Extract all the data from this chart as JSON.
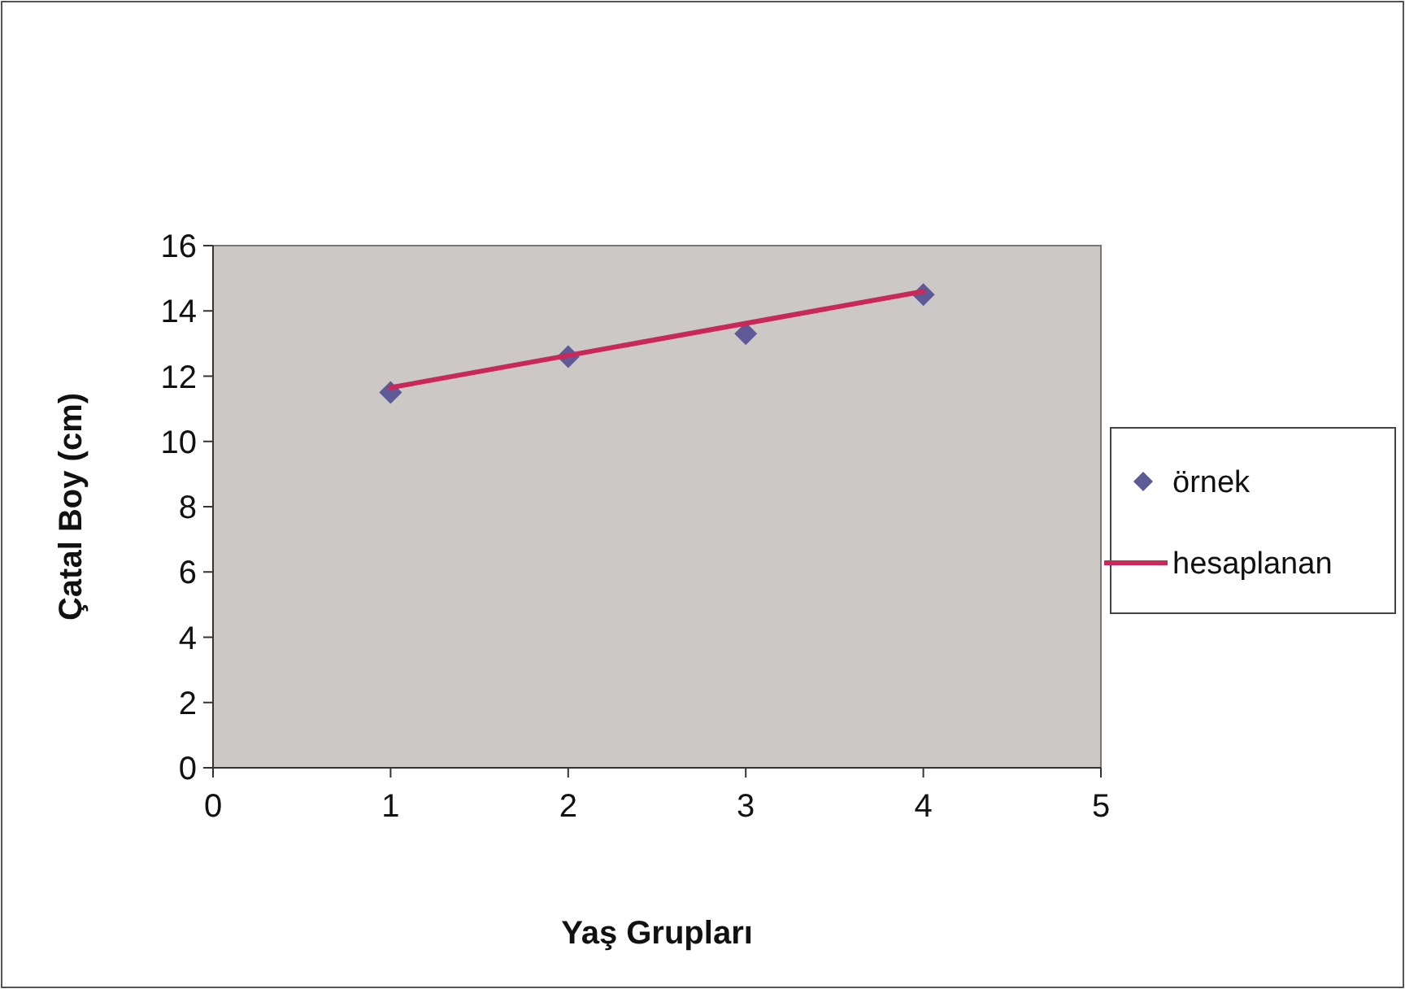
{
  "chart_data": {
    "type": "scatter",
    "xlabel": "Yaş Grupları",
    "ylabel": "Çatal Boy (cm)",
    "xlim": [
      0,
      5
    ],
    "xticks": [
      0,
      1,
      2,
      3,
      4,
      5
    ],
    "ylim": [
      0,
      16
    ],
    "yticks": [
      0,
      2,
      4,
      6,
      8,
      10,
      12,
      14,
      16
    ],
    "grid": false,
    "legend": "right",
    "series": [
      {
        "name": "örnek",
        "color": "#5e5a96",
        "marker": "diamond",
        "x": [
          1,
          2,
          3,
          4
        ],
        "values": [
          11.5,
          12.6,
          13.3,
          14.5
        ]
      },
      {
        "name": "hesaplanan",
        "type": "line",
        "color": "#c8285a",
        "marker": "none",
        "line_style": "solid",
        "x": [
          1,
          4
        ],
        "values": [
          11.65,
          14.6
        ]
      }
    ]
  }
}
